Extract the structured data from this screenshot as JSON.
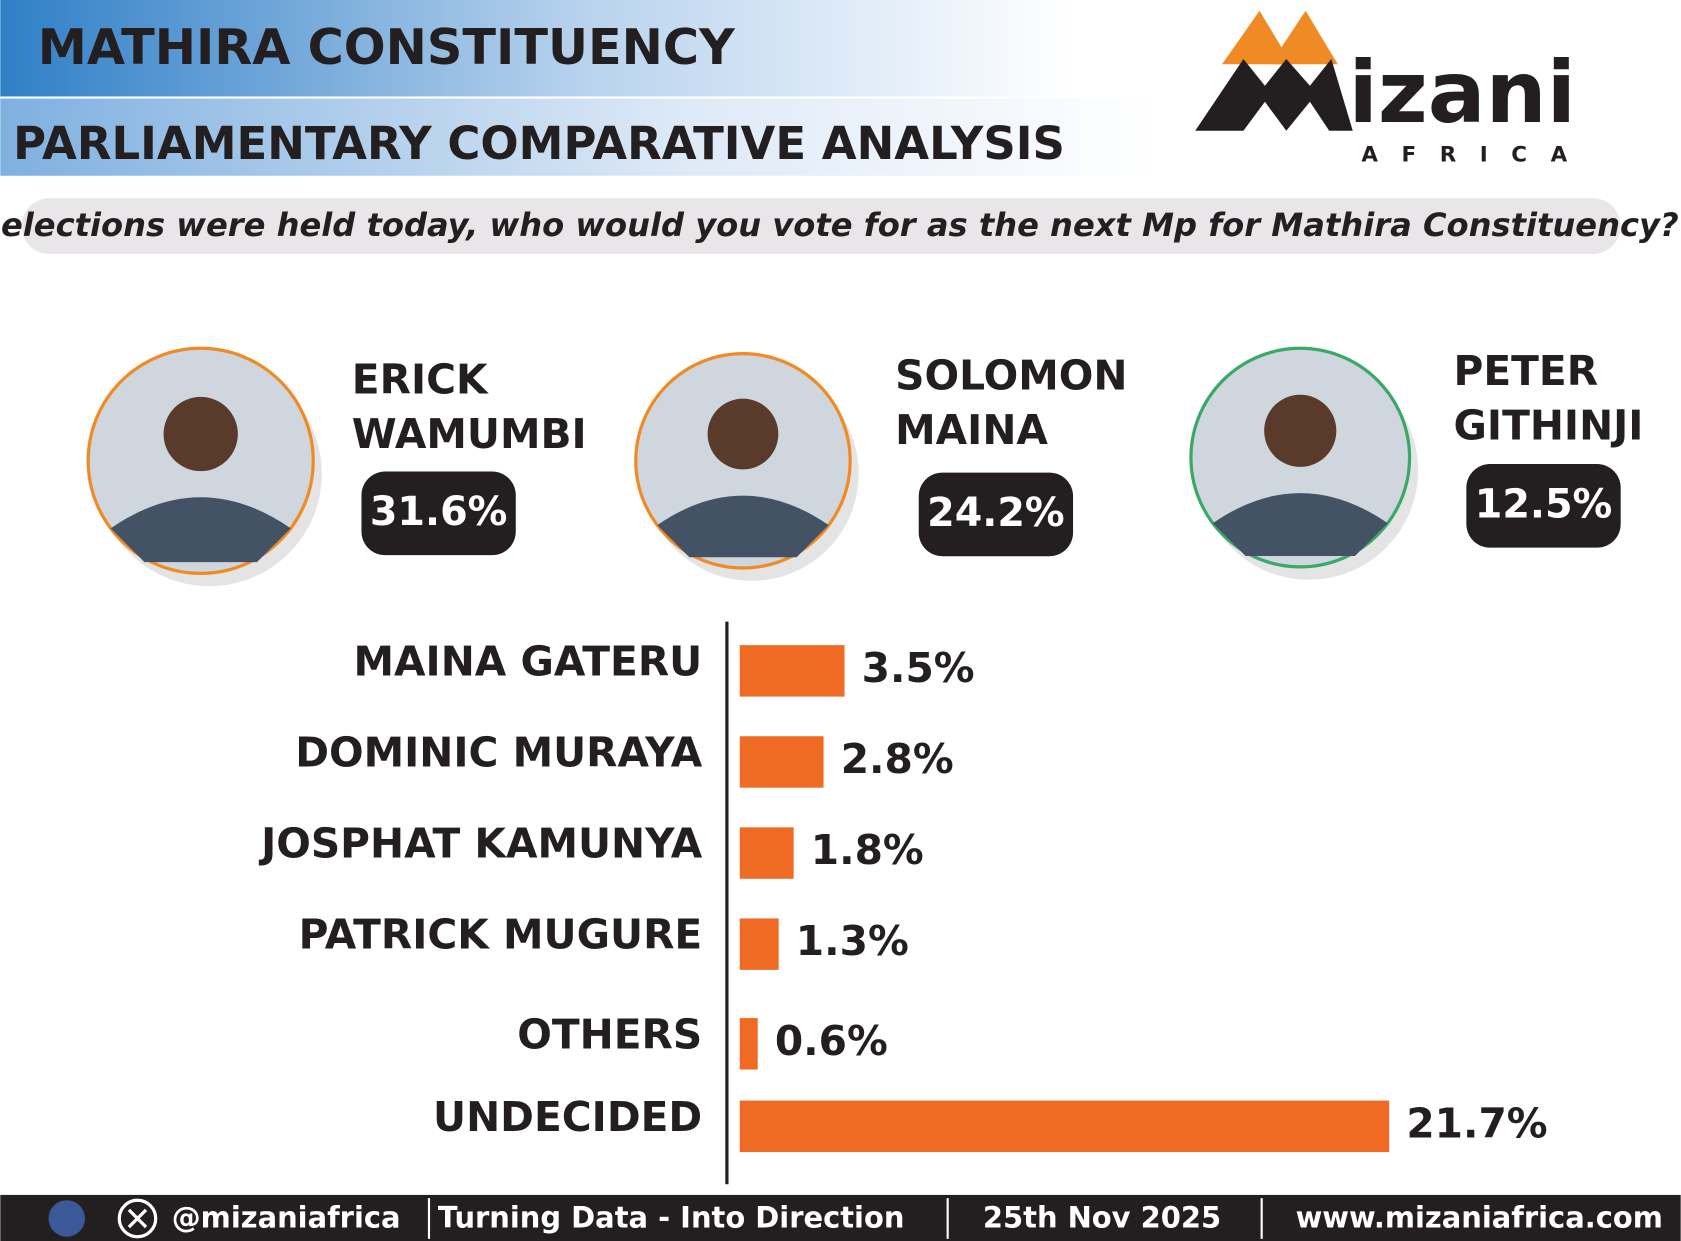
{
  "header": {
    "title": "MATHIRA CONSTITUENCY",
    "subtitle": "PARLIAMENTARY COMPARATIVE ANALYSIS",
    "question": "If elections were held today, who would you vote for as the next Mp for Mathira Constituency?"
  },
  "logo": {
    "name": "izani",
    "tagline": "AFRICA"
  },
  "featured": [
    {
      "name_lines": [
        "ERICK",
        "WAMUMBI"
      ],
      "value": 31.6,
      "value_label": "31.6%"
    },
    {
      "name_lines": [
        "SOLOMON",
        "MAINA"
      ],
      "value": 24.2,
      "value_label": "24.2%"
    },
    {
      "name_lines": [
        "PETER",
        "GITHINJI"
      ],
      "value": 12.5,
      "value_label": "12.5%"
    }
  ],
  "chart_data": {
    "type": "bar",
    "orientation": "horizontal",
    "color": "#ef6a23",
    "categories": [
      "MAINA GATERU",
      "DOMINIC MURAYA",
      "JOSPHAT KAMUNYA",
      "PATRICK MUGURE",
      "OTHERS",
      "UNDECIDED"
    ],
    "values": [
      3.5,
      2.8,
      1.8,
      1.3,
      0.6,
      21.7
    ],
    "value_labels": [
      "3.5%",
      "2.8%",
      "1.8%",
      "1.3%",
      "0.6%",
      "21.7%"
    ]
  },
  "footer": {
    "handle": "@mizaniafrica",
    "slogan": "Turning Data - Into Direction",
    "date": "25th Nov 2025",
    "website": "www.mizaniafrica.com"
  }
}
